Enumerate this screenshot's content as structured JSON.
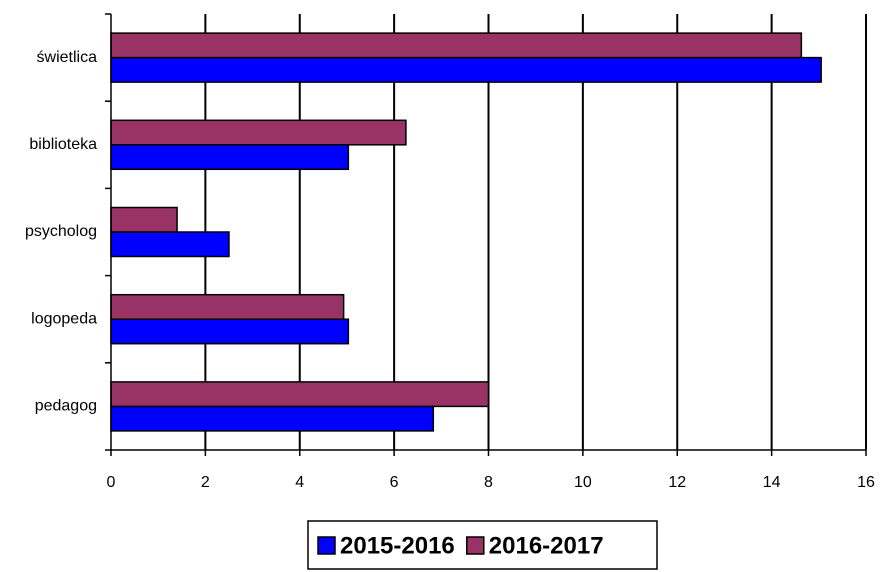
{
  "chart_data": {
    "type": "barh",
    "categories": [
      "świetlica",
      "biblioteka",
      "psycholog",
      "logopeda",
      "pedagog"
    ],
    "series": [
      {
        "name": "2015-2016",
        "color": "#0000ff",
        "values": [
          15.05,
          5.03,
          2.5,
          5.03,
          6.83
        ]
      },
      {
        "name": "2016-2017",
        "color": "#993366",
        "values": [
          14.63,
          6.25,
          1.4,
          4.93,
          8
        ]
      }
    ],
    "xlim": [
      0,
      16
    ],
    "xticks": [
      0,
      2,
      4,
      6,
      8,
      10,
      12,
      14,
      16
    ],
    "grid": true,
    "legend": "bottom"
  }
}
